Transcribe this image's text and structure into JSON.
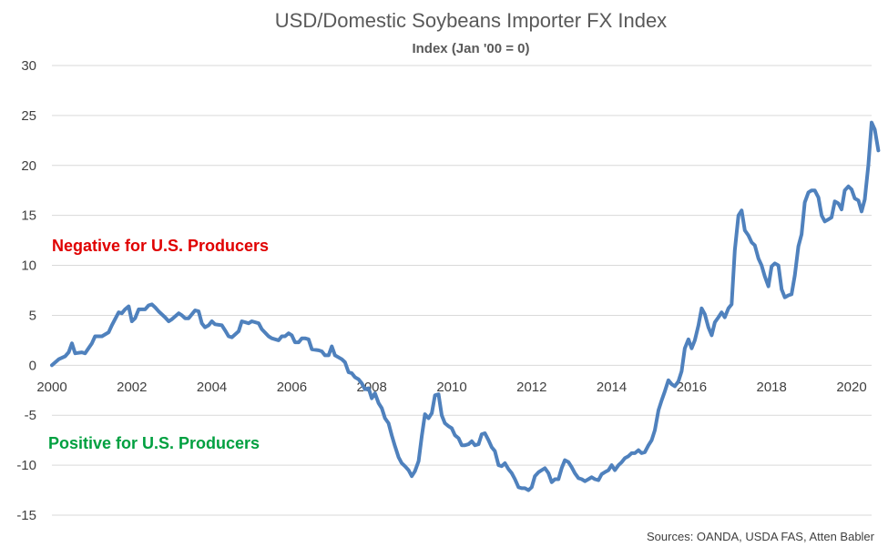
{
  "chart_data": {
    "type": "line",
    "title": "USD/Domestic Soybeans Importer FX Index",
    "subtitle": "Index (Jan '00 = 0)",
    "xlabel": "",
    "ylabel": "",
    "xlim": [
      2000,
      2020.5
    ],
    "ylim": [
      -15,
      30
    ],
    "y_ticks": [
      30,
      25,
      20,
      15,
      10,
      5,
      0,
      -5,
      -10,
      -15
    ],
    "x_ticks": [
      2000,
      2002,
      2004,
      2006,
      2008,
      2010,
      2012,
      2014,
      2016,
      2018,
      2020
    ],
    "grid": "horizontal",
    "line_color": "#4F81BD",
    "series": [
      {
        "name": "",
        "points": [
          [
            2000.0,
            0
          ],
          [
            2000.17,
            0.6
          ],
          [
            2000.33,
            0.9
          ],
          [
            2000.42,
            1.3
          ],
          [
            2000.5,
            2.2
          ],
          [
            2000.58,
            1.2
          ],
          [
            2000.75,
            1.3
          ],
          [
            2000.83,
            1.2
          ],
          [
            2001.0,
            2.2
          ],
          [
            2001.08,
            2.9
          ],
          [
            2001.25,
            2.9
          ],
          [
            2001.42,
            3.3
          ],
          [
            2001.5,
            4.0
          ],
          [
            2001.67,
            5.3
          ],
          [
            2001.75,
            5.2
          ],
          [
            2001.83,
            5.6
          ],
          [
            2001.92,
            5.9
          ],
          [
            2002.0,
            4.4
          ],
          [
            2002.08,
            4.7
          ],
          [
            2002.17,
            5.6
          ],
          [
            2002.33,
            5.6
          ],
          [
            2002.42,
            6.0
          ],
          [
            2002.5,
            6.1
          ],
          [
            2002.58,
            5.8
          ],
          [
            2002.67,
            5.4
          ],
          [
            2002.83,
            4.8
          ],
          [
            2002.92,
            4.4
          ],
          [
            2003.0,
            4.6
          ],
          [
            2003.17,
            5.2
          ],
          [
            2003.25,
            5.0
          ],
          [
            2003.33,
            4.7
          ],
          [
            2003.42,
            4.7
          ],
          [
            2003.58,
            5.5
          ],
          [
            2003.67,
            5.4
          ],
          [
            2003.75,
            4.2
          ],
          [
            2003.83,
            3.8
          ],
          [
            2003.92,
            4.0
          ],
          [
            2004.0,
            4.4
          ],
          [
            2004.08,
            4.1
          ],
          [
            2004.25,
            4.0
          ],
          [
            2004.33,
            3.5
          ],
          [
            2004.42,
            2.9
          ],
          [
            2004.5,
            2.8
          ],
          [
            2004.67,
            3.4
          ],
          [
            2004.75,
            4.4
          ],
          [
            2004.92,
            4.2
          ],
          [
            2005.0,
            4.4
          ],
          [
            2005.17,
            4.2
          ],
          [
            2005.25,
            3.6
          ],
          [
            2005.42,
            2.9
          ],
          [
            2005.5,
            2.7
          ],
          [
            2005.67,
            2.5
          ],
          [
            2005.75,
            2.9
          ],
          [
            2005.83,
            2.9
          ],
          [
            2005.92,
            3.2
          ],
          [
            2006.0,
            3.0
          ],
          [
            2006.08,
            2.3
          ],
          [
            2006.17,
            2.3
          ],
          [
            2006.25,
            2.7
          ],
          [
            2006.33,
            2.7
          ],
          [
            2006.42,
            2.6
          ],
          [
            2006.5,
            1.6
          ],
          [
            2006.67,
            1.5
          ],
          [
            2006.75,
            1.4
          ],
          [
            2006.83,
            1.0
          ],
          [
            2006.92,
            1.0
          ],
          [
            2007.0,
            1.9
          ],
          [
            2007.08,
            1.0
          ],
          [
            2007.25,
            0.6
          ],
          [
            2007.33,
            0.3
          ],
          [
            2007.42,
            -0.7
          ],
          [
            2007.5,
            -0.8
          ],
          [
            2007.58,
            -1.2
          ],
          [
            2007.67,
            -1.4
          ],
          [
            2007.75,
            -1.8
          ],
          [
            2007.83,
            -2.4
          ],
          [
            2007.92,
            -2.3
          ],
          [
            2008.0,
            -3.3
          ],
          [
            2008.08,
            -2.8
          ],
          [
            2008.17,
            -3.8
          ],
          [
            2008.25,
            -4.3
          ],
          [
            2008.33,
            -5.3
          ],
          [
            2008.42,
            -5.8
          ],
          [
            2008.5,
            -7.0
          ],
          [
            2008.58,
            -8.1
          ],
          [
            2008.67,
            -9.2
          ],
          [
            2008.75,
            -9.8
          ],
          [
            2008.83,
            -10.1
          ],
          [
            2008.92,
            -10.5
          ],
          [
            2009.0,
            -11.1
          ],
          [
            2009.08,
            -10.6
          ],
          [
            2009.17,
            -9.6
          ],
          [
            2009.25,
            -7.1
          ],
          [
            2009.33,
            -4.9
          ],
          [
            2009.42,
            -5.3
          ],
          [
            2009.5,
            -4.8
          ],
          [
            2009.58,
            -3.0
          ],
          [
            2009.67,
            -2.9
          ],
          [
            2009.75,
            -5.0
          ],
          [
            2009.83,
            -5.8
          ],
          [
            2009.92,
            -6.1
          ],
          [
            2010.0,
            -6.3
          ],
          [
            2010.08,
            -7.0
          ],
          [
            2010.17,
            -7.3
          ],
          [
            2010.25,
            -8.0
          ],
          [
            2010.33,
            -8.0
          ],
          [
            2010.42,
            -7.9
          ],
          [
            2010.5,
            -7.6
          ],
          [
            2010.58,
            -8.0
          ],
          [
            2010.67,
            -7.9
          ],
          [
            2010.75,
            -6.9
          ],
          [
            2010.83,
            -6.8
          ],
          [
            2010.92,
            -7.5
          ],
          [
            2011.0,
            -8.2
          ],
          [
            2011.08,
            -8.6
          ],
          [
            2011.17,
            -10.0
          ],
          [
            2011.25,
            -10.1
          ],
          [
            2011.33,
            -9.8
          ],
          [
            2011.42,
            -10.4
          ],
          [
            2011.5,
            -10.8
          ],
          [
            2011.58,
            -11.4
          ],
          [
            2011.67,
            -12.2
          ],
          [
            2011.75,
            -12.3
          ],
          [
            2011.83,
            -12.3
          ],
          [
            2011.92,
            -12.5
          ],
          [
            2012.0,
            -12.2
          ],
          [
            2012.08,
            -11.1
          ],
          [
            2012.17,
            -10.7
          ],
          [
            2012.25,
            -10.5
          ],
          [
            2012.33,
            -10.3
          ],
          [
            2012.42,
            -10.8
          ],
          [
            2012.5,
            -11.7
          ],
          [
            2012.58,
            -11.4
          ],
          [
            2012.67,
            -11.4
          ],
          [
            2012.75,
            -10.3
          ],
          [
            2012.83,
            -9.5
          ],
          [
            2012.92,
            -9.7
          ],
          [
            2013.0,
            -10.2
          ],
          [
            2013.08,
            -10.8
          ],
          [
            2013.17,
            -11.3
          ],
          [
            2013.25,
            -11.4
          ],
          [
            2013.33,
            -11.6
          ],
          [
            2013.42,
            -11.4
          ],
          [
            2013.5,
            -11.2
          ],
          [
            2013.58,
            -11.4
          ],
          [
            2013.67,
            -11.5
          ],
          [
            2013.75,
            -10.9
          ],
          [
            2013.83,
            -10.7
          ],
          [
            2013.92,
            -10.5
          ],
          [
            2014.0,
            -10.0
          ],
          [
            2014.08,
            -10.5
          ],
          [
            2014.17,
            -10.0
          ],
          [
            2014.25,
            -9.7
          ],
          [
            2014.33,
            -9.3
          ],
          [
            2014.42,
            -9.1
          ],
          [
            2014.5,
            -8.8
          ],
          [
            2014.58,
            -8.8
          ],
          [
            2014.67,
            -8.5
          ],
          [
            2014.75,
            -8.8
          ],
          [
            2014.83,
            -8.7
          ],
          [
            2014.92,
            -8.0
          ],
          [
            2015.0,
            -7.5
          ],
          [
            2015.08,
            -6.5
          ],
          [
            2015.17,
            -4.5
          ],
          [
            2015.25,
            -3.5
          ],
          [
            2015.33,
            -2.6
          ],
          [
            2015.42,
            -1.5
          ],
          [
            2015.5,
            -1.9
          ],
          [
            2015.58,
            -2.1
          ],
          [
            2015.67,
            -1.6
          ],
          [
            2015.75,
            -0.6
          ],
          [
            2015.83,
            1.7
          ],
          [
            2015.92,
            2.6
          ],
          [
            2016.0,
            1.7
          ],
          [
            2016.08,
            2.5
          ],
          [
            2016.17,
            4.0
          ],
          [
            2016.25,
            5.7
          ],
          [
            2016.33,
            5.1
          ],
          [
            2016.42,
            3.8
          ],
          [
            2016.5,
            3.0
          ],
          [
            2016.58,
            4.3
          ],
          [
            2016.67,
            4.8
          ],
          [
            2016.75,
            5.3
          ],
          [
            2016.83,
            4.8
          ],
          [
            2016.92,
            5.7
          ],
          [
            2017.0,
            6.1
          ],
          [
            2017.08,
            11.5
          ],
          [
            2017.17,
            15.0
          ],
          [
            2017.25,
            15.5
          ],
          [
            2017.33,
            13.5
          ],
          [
            2017.42,
            13.0
          ],
          [
            2017.5,
            12.3
          ],
          [
            2017.58,
            12.0
          ],
          [
            2017.67,
            10.7
          ],
          [
            2017.75,
            10.0
          ],
          [
            2017.83,
            8.9
          ],
          [
            2017.92,
            7.9
          ],
          [
            2018.0,
            9.9
          ],
          [
            2018.08,
            10.2
          ],
          [
            2018.17,
            10.0
          ],
          [
            2018.25,
            7.6
          ],
          [
            2018.33,
            6.8
          ],
          [
            2018.42,
            7.0
          ],
          [
            2018.5,
            7.1
          ],
          [
            2018.58,
            9.0
          ],
          [
            2018.67,
            11.9
          ],
          [
            2018.75,
            13.1
          ],
          [
            2018.83,
            16.3
          ],
          [
            2018.92,
            17.3
          ],
          [
            2019.0,
            17.5
          ],
          [
            2019.08,
            17.5
          ],
          [
            2019.17,
            16.8
          ],
          [
            2019.25,
            15.0
          ],
          [
            2019.33,
            14.4
          ],
          [
            2019.42,
            14.6
          ],
          [
            2019.5,
            14.8
          ],
          [
            2019.58,
            16.4
          ],
          [
            2019.67,
            16.2
          ],
          [
            2019.75,
            15.6
          ],
          [
            2019.83,
            17.5
          ],
          [
            2019.92,
            17.9
          ],
          [
            2020.0,
            17.6
          ],
          [
            2020.08,
            16.7
          ],
          [
            2020.17,
            16.5
          ],
          [
            2020.25,
            15.4
          ],
          [
            2020.33,
            16.6
          ],
          [
            2020.42,
            20.0
          ],
          [
            2020.5,
            24.3
          ],
          [
            2020.58,
            23.6
          ],
          [
            2020.67,
            21.5
          ]
        ]
      }
    ],
    "annotations": [
      {
        "text": "Negative for U.S. Producers",
        "color": "#E00000"
      },
      {
        "text": "Positive for U.S. Producers",
        "color": "#00A040"
      }
    ],
    "source": "Sources: OANDA, USDA FAS, Atten Babler"
  }
}
